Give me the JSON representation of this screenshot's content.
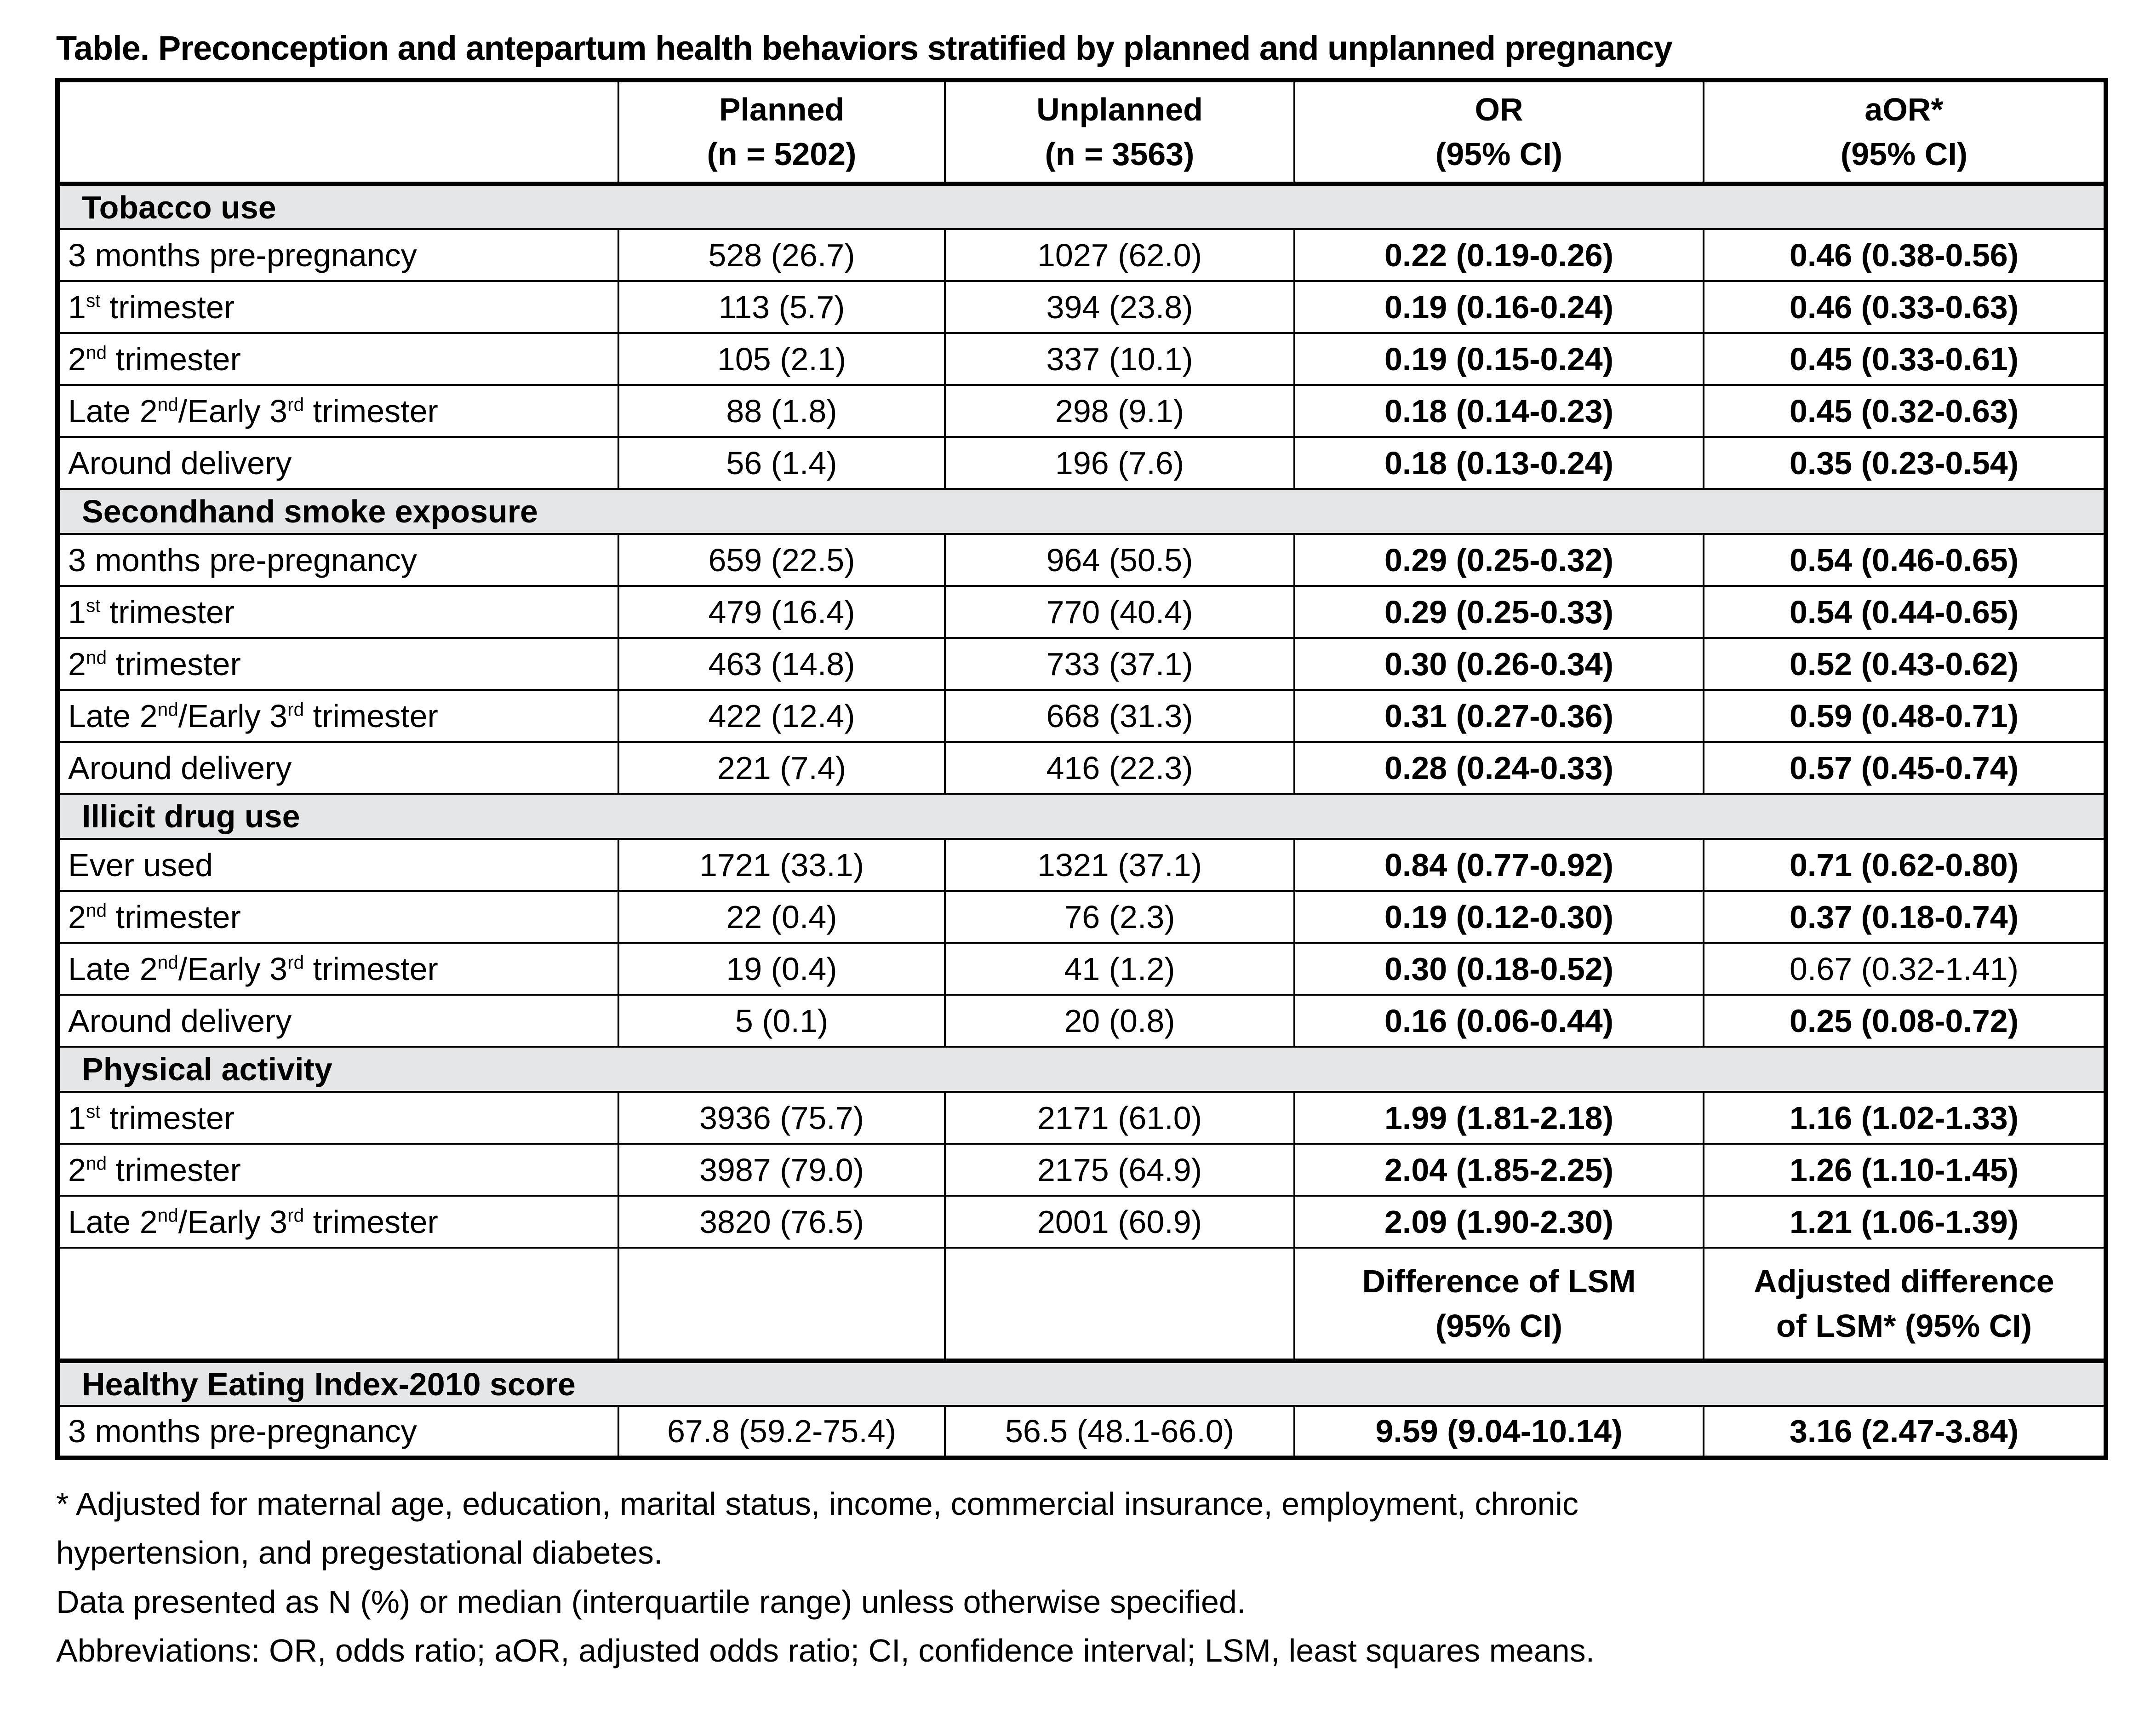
{
  "title": "Table. Preconception and antepartum health behaviors stratified by planned and unplanned pregnancy",
  "colors": {
    "section_bg": "#e5e6e8",
    "border": "#000000",
    "text": "#000000",
    "page_bg": "#ffffff"
  },
  "table": {
    "header": {
      "blank": "",
      "planned": [
        "Planned",
        "(n = 5202)"
      ],
      "unplanned": [
        "Unplanned",
        "(n = 3563)"
      ],
      "or": [
        "OR",
        "(95% CI)"
      ],
      "aor": [
        "aOR*",
        "(95% CI)"
      ]
    },
    "lsm_header": {
      "or": [
        "Difference of LSM",
        "(95% CI)"
      ],
      "aor": [
        "Adjusted difference",
        "of LSM* (95% CI)"
      ]
    },
    "sections": [
      {
        "label": "Tobacco use",
        "rows": [
          {
            "label": [
              {
                "text": "3 months pre-pregnancy"
              }
            ],
            "planned": "528 (26.7)",
            "unplanned": "1027 (62.0)",
            "or": "0.22 (0.19-0.26)",
            "aor": "0.46 (0.38-0.56)"
          },
          {
            "label": [
              {
                "text": "1"
              },
              {
                "sup": "st"
              },
              {
                "text": " trimester"
              }
            ],
            "planned": "113 (5.7)",
            "unplanned": "394 (23.8)",
            "or": "0.19 (0.16-0.24)",
            "aor": "0.46 (0.33-0.63)"
          },
          {
            "label": [
              {
                "text": "2"
              },
              {
                "sup": "nd"
              },
              {
                "text": " trimester"
              }
            ],
            "planned": "105 (2.1)",
            "unplanned": "337 (10.1)",
            "or": "0.19 (0.15-0.24)",
            "aor": "0.45 (0.33-0.61)"
          },
          {
            "label": [
              {
                "text": "Late 2"
              },
              {
                "sup": "nd"
              },
              {
                "text": "/Early 3"
              },
              {
                "sup": "rd"
              },
              {
                "text": " trimester"
              }
            ],
            "planned": "88 (1.8)",
            "unplanned": "298 (9.1)",
            "or": "0.18 (0.14-0.23)",
            "aor": "0.45 (0.32-0.63)"
          },
          {
            "label": [
              {
                "text": "Around delivery"
              }
            ],
            "planned": "56 (1.4)",
            "unplanned": "196 (7.6)",
            "or": "0.18 (0.13-0.24)",
            "aor": "0.35 (0.23-0.54)"
          }
        ]
      },
      {
        "label": "Secondhand smoke exposure",
        "rows": [
          {
            "label": [
              {
                "text": "3 months pre-pregnancy"
              }
            ],
            "planned": "659 (22.5)",
            "unplanned": "964 (50.5)",
            "or": "0.29 (0.25-0.32)",
            "aor": "0.54 (0.46-0.65)"
          },
          {
            "label": [
              {
                "text": "1"
              },
              {
                "sup": "st"
              },
              {
                "text": " trimester"
              }
            ],
            "planned": "479 (16.4)",
            "unplanned": "770 (40.4)",
            "or": "0.29 (0.25-0.33)",
            "aor": "0.54 (0.44-0.65)"
          },
          {
            "label": [
              {
                "text": "2"
              },
              {
                "sup": "nd"
              },
              {
                "text": " trimester"
              }
            ],
            "planned": "463 (14.8)",
            "unplanned": "733 (37.1)",
            "or": "0.30 (0.26-0.34)",
            "aor": "0.52 (0.43-0.62)"
          },
          {
            "label": [
              {
                "text": "Late 2"
              },
              {
                "sup": "nd"
              },
              {
                "text": "/Early 3"
              },
              {
                "sup": "rd"
              },
              {
                "text": " trimester"
              }
            ],
            "planned": "422 (12.4)",
            "unplanned": "668 (31.3)",
            "or": "0.31 (0.27-0.36)",
            "aor": "0.59 (0.48-0.71)"
          },
          {
            "label": [
              {
                "text": "Around delivery"
              }
            ],
            "planned": "221 (7.4)",
            "unplanned": "416 (22.3)",
            "or": "0.28 (0.24-0.33)",
            "aor": "0.57 (0.45-0.74)"
          }
        ]
      },
      {
        "label": "Illicit drug use",
        "rows": [
          {
            "label": [
              {
                "text": "Ever used"
              }
            ],
            "planned": "1721 (33.1)",
            "unplanned": "1321 (37.1)",
            "or": "0.84 (0.77-0.92)",
            "aor": "0.71 (0.62-0.80)"
          },
          {
            "label": [
              {
                "text": "2"
              },
              {
                "sup": "nd"
              },
              {
                "text": " trimester"
              }
            ],
            "planned": "22 (0.4)",
            "unplanned": "76 (2.3)",
            "or": "0.19 (0.12-0.30)",
            "aor": "0.37 (0.18-0.74)"
          },
          {
            "label": [
              {
                "text": "Late 2"
              },
              {
                "sup": "nd"
              },
              {
                "text": "/Early 3"
              },
              {
                "sup": "rd"
              },
              {
                "text": " trimester"
              }
            ],
            "planned": "19 (0.4)",
            "unplanned": "41 (1.2)",
            "or": "0.30 (0.18-0.52)",
            "aor": "0.67 (0.32-1.41)"
          },
          {
            "label": [
              {
                "text": "Around delivery"
              }
            ],
            "planned": "5 (0.1)",
            "unplanned": "20 (0.8)",
            "or": "0.16 (0.06-0.44)",
            "aor": "0.25 (0.08-0.72)"
          }
        ]
      },
      {
        "label": "Physical activity",
        "rows": [
          {
            "label": [
              {
                "text": "1"
              },
              {
                "sup": "st"
              },
              {
                "text": " trimester"
              }
            ],
            "planned": "3936 (75.7)",
            "unplanned": "2171 (61.0)",
            "or": "1.99 (1.81-2.18)",
            "aor": "1.16 (1.02-1.33)"
          },
          {
            "label": [
              {
                "text": "2"
              },
              {
                "sup": "nd"
              },
              {
                "text": " trimester"
              }
            ],
            "planned": "3987 (79.0)",
            "unplanned": "2175 (64.9)",
            "or": "2.04 (1.85-2.25)",
            "aor": "1.26 (1.10-1.45)"
          },
          {
            "label": [
              {
                "text": "Late 2"
              },
              {
                "sup": "nd"
              },
              {
                "text": "/Early 3"
              },
              {
                "sup": "rd"
              },
              {
                "text": " trimester"
              }
            ],
            "planned": "3820 (76.5)",
            "unplanned": "2001 (60.9)",
            "or": "2.09 (1.90-2.30)",
            "aor": "1.21 (1.06-1.39)"
          }
        ]
      },
      {
        "label": "Healthy Eating Index-2010 score",
        "rows": [
          {
            "label": [
              {
                "text": "3 months pre-pregnancy"
              }
            ],
            "planned": "67.8 (59.2-75.4)",
            "unplanned": "56.5 (48.1-66.0)",
            "or": "9.59 (9.04-10.14)",
            "aor": "3.16 (2.47-3.84)"
          }
        ]
      }
    ]
  },
  "footnotes": [
    "* Adjusted for maternal age, education, marital status, income, commercial insurance, employment, chronic hypertension, and pregestational diabetes.",
    "Data presented as N (%) or median (interquartile range) unless otherwise specified.",
    "Abbreviations: OR, odds ratio; aOR, adjusted odds ratio; CI, confidence interval; LSM, least squares means."
  ]
}
